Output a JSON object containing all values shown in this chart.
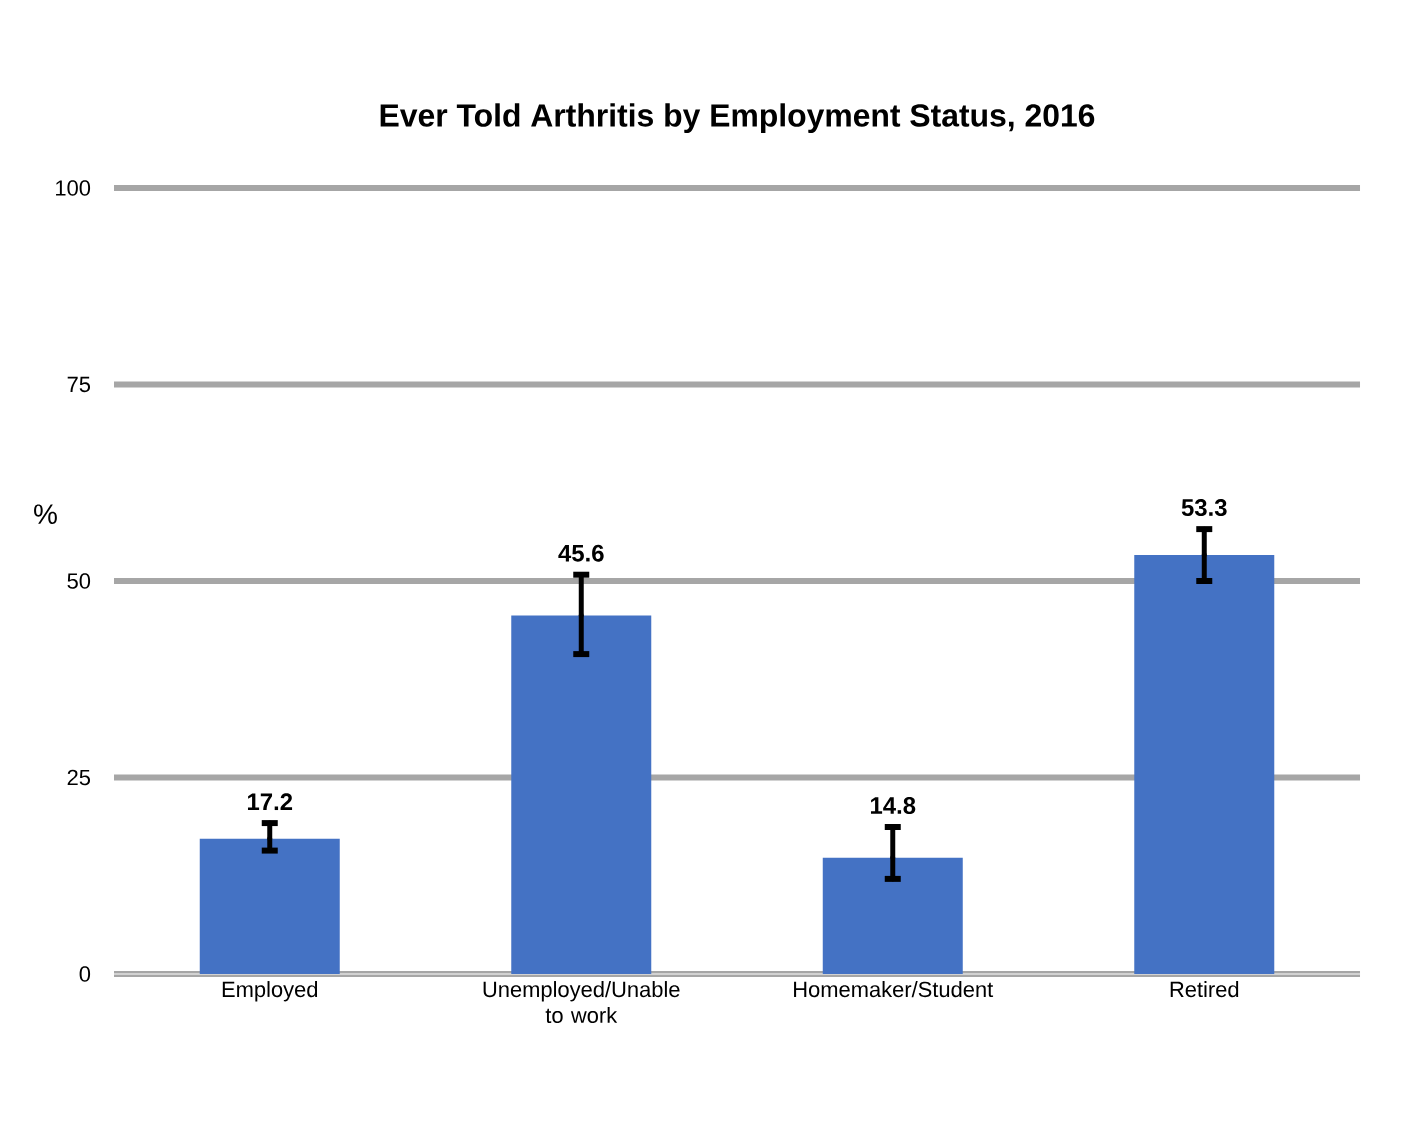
{
  "chart_data": {
    "type": "bar",
    "title": "Ever Told Arthritis by Employment Status, 2016",
    "ylabel": "%",
    "categories": [
      "Employed",
      "Unemployed/Unable to work",
      "Homemaker/Student",
      "Retired"
    ],
    "values": [
      17.2,
      45.6,
      14.8,
      53.3
    ],
    "color": "#4472c4",
    "errors": [
      [
        15.7,
        19.2
      ],
      [
        40.7,
        50.8
      ],
      [
        12.1,
        18.7
      ],
      [
        50.0,
        56.6
      ]
    ],
    "ylim": [
      0,
      100
    ],
    "yticks": [
      0,
      25,
      50,
      75,
      100
    ],
    "grid": "y",
    "data_labels": true
  }
}
